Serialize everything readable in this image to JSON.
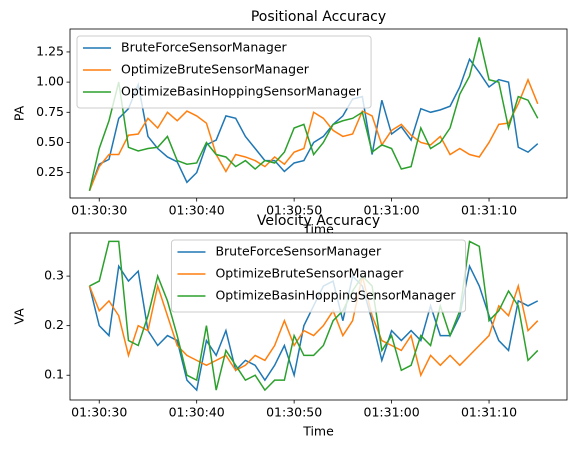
{
  "chart_data": [
    {
      "type": "line",
      "title": "Positional Accuracy",
      "xlabel": "Time",
      "ylabel": "PA",
      "x": [
        "01:30:29",
        "01:30:30",
        "01:30:31",
        "01:30:32",
        "01:30:33",
        "01:30:34",
        "01:30:35",
        "01:30:36",
        "01:30:37",
        "01:30:38",
        "01:30:39",
        "01:30:40",
        "01:30:41",
        "01:30:42",
        "01:30:43",
        "01:30:44",
        "01:30:45",
        "01:30:46",
        "01:30:47",
        "01:30:48",
        "01:30:49",
        "01:30:50",
        "01:30:51",
        "01:30:52",
        "01:30:53",
        "01:30:54",
        "01:30:55",
        "01:30:56",
        "01:30:57",
        "01:30:58",
        "01:30:59",
        "01:31:00",
        "01:31:01",
        "01:31:02",
        "01:31:03",
        "01:31:04",
        "01:31:05",
        "01:31:06",
        "01:31:07",
        "01:31:08",
        "01:31:09",
        "01:31:10",
        "01:31:11",
        "01:31:12",
        "01:31:13",
        "01:31:14",
        "01:31:15"
      ],
      "series": [
        {
          "name": "BruteForceSensorManager",
          "color": "#1f77b4",
          "values": [
            0.1,
            0.32,
            0.36,
            0.7,
            0.78,
            0.98,
            0.55,
            0.45,
            0.38,
            0.34,
            0.17,
            0.25,
            0.48,
            0.52,
            0.72,
            0.7,
            0.55,
            0.45,
            0.35,
            0.35,
            0.26,
            0.33,
            0.35,
            0.5,
            0.55,
            0.65,
            0.72,
            0.86,
            0.88,
            0.4,
            0.85,
            0.57,
            0.63,
            0.52,
            0.78,
            0.75,
            0.77,
            0.8,
            0.96,
            1.19,
            1.08,
            0.96,
            1.02,
            1.0,
            0.46,
            0.42,
            0.49
          ]
        },
        {
          "name": "OptimizeBruteSensorManager",
          "color": "#ff7f0e",
          "values": [
            0.1,
            0.3,
            0.4,
            0.4,
            0.56,
            0.57,
            0.7,
            0.62,
            0.75,
            0.68,
            0.76,
            0.72,
            0.66,
            0.4,
            0.26,
            0.4,
            0.38,
            0.35,
            0.3,
            0.38,
            0.32,
            0.42,
            0.45,
            0.75,
            0.7,
            0.6,
            0.55,
            0.57,
            0.76,
            0.72,
            0.48,
            0.6,
            0.65,
            0.56,
            0.5,
            0.48,
            0.55,
            0.4,
            0.45,
            0.4,
            0.38,
            0.5,
            0.65,
            0.66,
            0.82,
            1.02,
            0.82
          ]
        },
        {
          "name": "OptimizeBasinHoppingSensorManager",
          "color": "#2ca02c",
          "values": [
            0.1,
            0.45,
            0.68,
            1.0,
            0.46,
            0.43,
            0.45,
            0.46,
            0.55,
            0.35,
            0.32,
            0.33,
            0.5,
            0.4,
            0.38,
            0.3,
            0.35,
            0.28,
            0.35,
            0.33,
            0.42,
            0.62,
            0.65,
            0.4,
            0.5,
            0.65,
            0.68,
            0.7,
            0.75,
            0.42,
            0.48,
            0.45,
            0.28,
            0.3,
            0.62,
            0.45,
            0.5,
            0.62,
            0.9,
            1.05,
            1.37,
            1.02,
            1.0,
            0.62,
            0.88,
            0.85,
            0.7
          ]
        }
      ],
      "xlim": [
        "01:30:27",
        "01:31:18"
      ],
      "xticks": [
        "01:30:30",
        "01:30:40",
        "01:30:50",
        "01:31:00",
        "01:31:10"
      ],
      "ylim": [
        0.04,
        1.44
      ],
      "yticks": [
        0.25,
        {
          "value": 0.5,
          "label": "0.50"
        },
        0.75,
        {
          "value": 1.0,
          "label": "1.00"
        },
        1.25
      ],
      "legend": "upper left"
    },
    {
      "type": "line",
      "title": "Velocity Accuracy",
      "xlabel": "Time",
      "ylabel": "VA",
      "x": [
        "01:30:29",
        "01:30:30",
        "01:30:31",
        "01:30:32",
        "01:30:33",
        "01:30:34",
        "01:30:35",
        "01:30:36",
        "01:30:37",
        "01:30:38",
        "01:30:39",
        "01:30:40",
        "01:30:41",
        "01:30:42",
        "01:30:43",
        "01:30:44",
        "01:30:45",
        "01:30:46",
        "01:30:47",
        "01:30:48",
        "01:30:49",
        "01:30:50",
        "01:30:51",
        "01:30:52",
        "01:30:53",
        "01:30:54",
        "01:30:55",
        "01:30:56",
        "01:30:57",
        "01:30:58",
        "01:30:59",
        "01:31:00",
        "01:31:01",
        "01:31:02",
        "01:31:03",
        "01:31:04",
        "01:31:05",
        "01:31:06",
        "01:31:07",
        "01:31:08",
        "01:31:09",
        "01:31:10",
        "01:31:11",
        "01:31:12",
        "01:31:13",
        "01:31:14",
        "01:31:15"
      ],
      "series": [
        {
          "name": "BruteForceSensorManager",
          "color": "#1f77b4",
          "values": [
            0.28,
            0.2,
            0.18,
            0.32,
            0.29,
            0.31,
            0.19,
            0.16,
            0.18,
            0.17,
            0.09,
            0.07,
            0.17,
            0.14,
            0.19,
            0.11,
            0.13,
            0.12,
            0.09,
            0.12,
            0.16,
            0.1,
            0.2,
            0.24,
            0.28,
            0.29,
            0.21,
            0.3,
            0.28,
            0.21,
            0.13,
            0.19,
            0.17,
            0.19,
            0.17,
            0.24,
            0.18,
            0.18,
            0.22,
            0.32,
            0.28,
            0.22,
            0.17,
            0.15,
            0.25,
            0.24,
            0.25
          ]
        },
        {
          "name": "OptimizeBruteSensorManager",
          "color": "#ff7f0e",
          "values": [
            0.28,
            0.23,
            0.25,
            0.22,
            0.14,
            0.2,
            0.19,
            0.28,
            0.22,
            0.16,
            0.14,
            0.13,
            0.12,
            0.13,
            0.14,
            0.11,
            0.12,
            0.14,
            0.13,
            0.16,
            0.21,
            0.16,
            0.19,
            0.18,
            0.2,
            0.23,
            0.18,
            0.21,
            0.3,
            0.22,
            0.17,
            0.16,
            0.15,
            0.18,
            0.1,
            0.14,
            0.12,
            0.14,
            0.12,
            0.14,
            0.16,
            0.18,
            0.24,
            0.22,
            0.28,
            0.19,
            0.21
          ]
        },
        {
          "name": "OptimizeBasinHoppingSensorManager",
          "color": "#2ca02c",
          "values": [
            0.28,
            0.29,
            0.37,
            0.37,
            0.17,
            0.16,
            0.22,
            0.3,
            0.25,
            0.18,
            0.1,
            0.09,
            0.2,
            0.07,
            0.15,
            0.12,
            0.09,
            0.1,
            0.07,
            0.09,
            0.09,
            0.18,
            0.14,
            0.14,
            0.16,
            0.21,
            0.23,
            0.27,
            0.3,
            0.28,
            0.15,
            0.18,
            0.11,
            0.12,
            0.18,
            0.16,
            0.24,
            0.18,
            0.23,
            0.37,
            0.36,
            0.21,
            0.23,
            0.27,
            0.24,
            0.13,
            0.15
          ]
        }
      ],
      "xlim": [
        "01:30:27",
        "01:31:18"
      ],
      "xticks": [
        "01:30:30",
        "01:30:40",
        "01:30:50",
        "01:31:00",
        "01:31:10"
      ],
      "ylim": [
        0.05,
        0.387
      ],
      "yticks": [
        0.1,
        0.2,
        0.3
      ],
      "legend": "upper center"
    }
  ]
}
